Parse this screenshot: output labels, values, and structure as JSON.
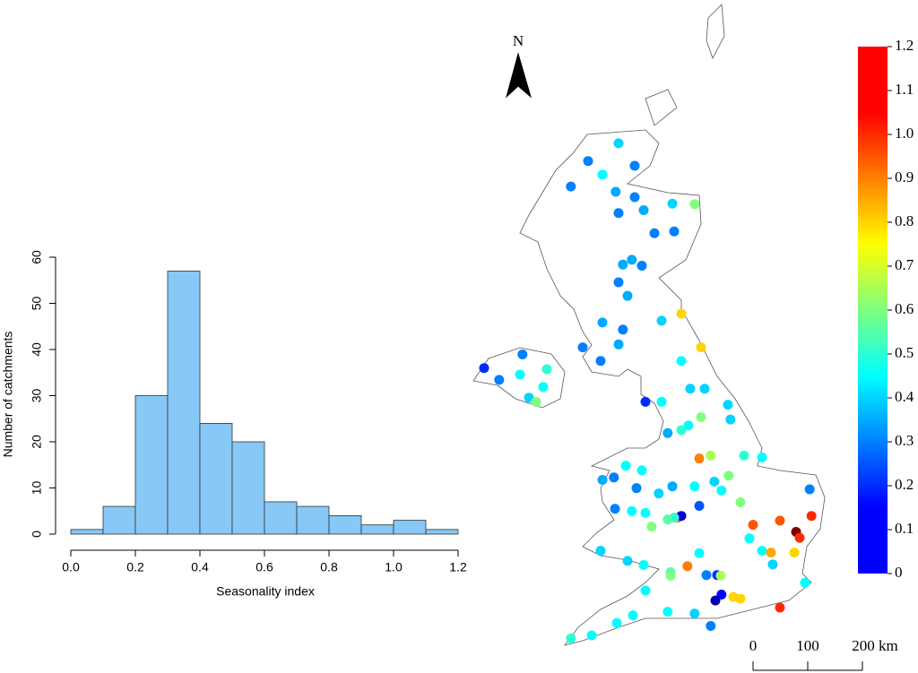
{
  "chart_data": [
    {
      "type": "histogram",
      "xlabel": "Seasonality index",
      "ylabel": "Number of catchments",
      "bins": [
        0,
        0.1,
        0.2,
        0.3,
        0.4,
        0.5,
        0.6,
        0.7,
        0.8,
        0.9,
        1.0,
        1.1,
        1.2
      ],
      "values": [
        1,
        6,
        30,
        57,
        24,
        20,
        7,
        6,
        4,
        2,
        3,
        1
      ],
      "color": "#87c8f7",
      "xlim": [
        0,
        1.2
      ],
      "xticks": [
        {
          "value": 0,
          "label": "0.0"
        },
        0.2,
        0.4,
        0.6,
        0.8,
        {
          "value": 1,
          "label": "1.0"
        },
        1.2
      ],
      "ylim": [
        0,
        60
      ],
      "yticks": [
        0,
        10,
        20,
        30,
        40,
        50,
        60
      ]
    },
    {
      "type": "map",
      "north_label": "N",
      "colormap": "jet",
      "lon": [
        -4.0,
        -4.85,
        -3.55,
        -4.45,
        -5.33,
        -4.08,
        -3.55,
        -2.5,
        -1.88,
        -3.3,
        -4.0,
        -2.45,
        -3.0,
        -3.63,
        -3.88,
        -3.35,
        -4.0,
        -3.75,
        -2.25,
        -2.8,
        -4.45,
        -3.88,
        -5.0,
        -1.7,
        -4.0,
        -4.5,
        -7.75,
        -6.68,
        -7.33,
        -6.75,
        -6.0,
        -6.1,
        -6.5,
        -6.3,
        -3.25,
        -2.8,
        -2.25,
        -2.0,
        -1.6,
        -0.95,
        -1.7,
        -2.05,
        -2.63,
        -2.25,
        -0.88,
        -0.5,
        0.0,
        -1.75,
        -1.43,
        -0.93,
        -0.6,
        -0.35,
        -0.25,
        0.0,
        0.5,
        0.95,
        1.05,
        1.38,
        1.33,
        0.9,
        0.25,
        0.3,
        0.5,
        1.2,
        -0.8,
        -0.6,
        -1.3,
        -1.13,
        -1.55,
        -1.25,
        -1.15,
        -2.08,
        -1.75,
        -2.35,
        -2.25,
        -2.45,
        -1.75,
        -1.33,
        -1.13,
        -1.88,
        -2.5,
        -2.88,
        -3.5,
        -4.13,
        -4.45,
        -3.8,
        -3.35,
        -4.1,
        -3.63,
        -3.25,
        -3.08,
        -2.63,
        -4.5,
        -3.75,
        -3.3,
        -2.55,
        -2.55,
        -3.25,
        -2.63,
        -3.6,
        -4.05,
        -4.75,
        -5.33,
        -1.88,
        -1.43
      ],
      "lat": [
        58.45,
        58.15,
        58.07,
        57.92,
        57.72,
        57.63,
        57.54,
        57.43,
        57.42,
        57.32,
        57.27,
        56.96,
        56.93,
        56.48,
        56.4,
        56.38,
        56.1,
        55.87,
        55.57,
        55.45,
        55.42,
        55.3,
        55.0,
        55.0,
        55.05,
        54.77,
        54.65,
        54.88,
        54.45,
        54.54,
        54.63,
        54.33,
        54.15,
        54.08,
        54.08,
        54.08,
        54.77,
        54.3,
        54.3,
        54.03,
        53.82,
        53.68,
        53.55,
        53.6,
        53.78,
        53.17,
        53.14,
        53.12,
        53.17,
        52.83,
        52.38,
        51.77,
        52.0,
        51.56,
        52.07,
        51.88,
        51.78,
        52.15,
        52.6,
        51.53,
        51.53,
        51.33,
        50.6,
        51.02,
        50.78,
        50.75,
        50.72,
        50.82,
        51.15,
        51.15,
        51.14,
        51.3,
        51.52,
        52.12,
        52.15,
        52.12,
        52.32,
        52.73,
        52.58,
        52.65,
        52.65,
        52.53,
        52.62,
        52.8,
        52.76,
        53.0,
        52.92,
        52.27,
        52.23,
        52.2,
        51.97,
        52.09,
        51.56,
        51.39,
        51.32,
        51.2,
        51.14,
        50.89,
        50.53,
        50.47,
        50.34,
        50.13,
        50.08,
        50.5,
        50.29
      ],
      "values": [
        0.4,
        0.3,
        0.3,
        0.45,
        0.3,
        0.35,
        0.3,
        0.4,
        0.6,
        0.35,
        0.3,
        0.3,
        0.3,
        0.35,
        0.35,
        0.3,
        0.3,
        0.35,
        0.8,
        0.4,
        0.35,
        0.3,
        0.3,
        0.8,
        0.35,
        0.3,
        0.2,
        0.3,
        0.3,
        0.45,
        0.5,
        0.45,
        0.4,
        0.6,
        0.2,
        0.45,
        0.45,
        0.4,
        0.4,
        0.4,
        0.6,
        0.45,
        0.35,
        0.5,
        0.4,
        0.5,
        0.45,
        0.9,
        0.65,
        0.6,
        0.6,
        0.45,
        0.95,
        0.45,
        0.95,
        1.2,
        1.0,
        1.0,
        0.3,
        0.8,
        0.85,
        0.4,
        1.0,
        0.45,
        0.8,
        0.8,
        0.05,
        0.15,
        0.3,
        0.2,
        0.65,
        0.9,
        0.45,
        0.9,
        0.1,
        0.5,
        0.25,
        0.4,
        0.45,
        0.45,
        0.35,
        0.4,
        0.3,
        0.3,
        0.35,
        0.45,
        0.45,
        0.3,
        0.45,
        0.45,
        0.6,
        0.55,
        0.4,
        0.4,
        0.45,
        0.55,
        0.6,
        0.45,
        0.45,
        0.45,
        0.45,
        0.45,
        0.5,
        0.4,
        0.3
      ],
      "colorbar_lim": [
        0,
        1.2
      ],
      "colorbar_ticks": [
        0,
        0.1,
        0.2,
        0.3,
        0.4,
        0.5,
        0.6,
        0.7,
        0.8,
        0.9,
        {
          "value": 1,
          "label": "1.0"
        },
        1.1,
        1.2
      ],
      "scale_bar_labels": [
        "0",
        "100",
        "200 km"
      ]
    }
  ]
}
